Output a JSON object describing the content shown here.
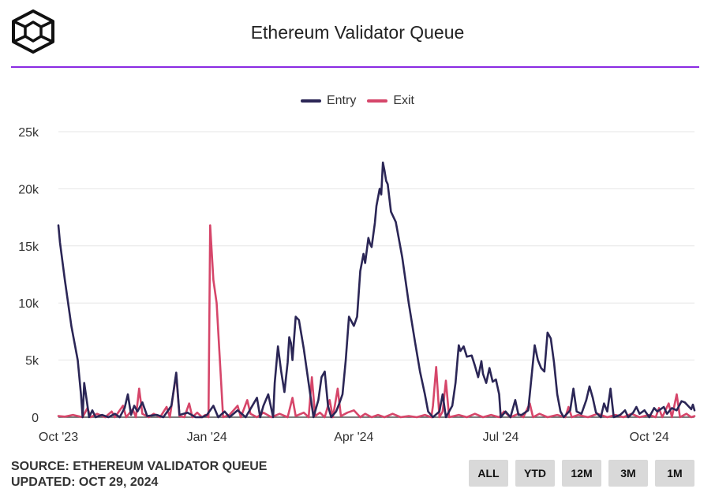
{
  "header": {
    "title": "Ethereum Validator Queue"
  },
  "footer": {
    "source": "SOURCE: ETHEREUM VALIDATOR QUEUE",
    "updated": "UPDATED: OCT 29, 2024"
  },
  "buttons": [
    "ALL",
    "YTD",
    "12M",
    "3M",
    "1M"
  ],
  "colors": {
    "entry": "#2b2656",
    "exit": "#d6466a",
    "accent": "#8a2be2",
    "grid": "#e6e6e6"
  },
  "chart_data": {
    "type": "line",
    "title": "Ethereum Validator Queue",
    "xlabel": "",
    "ylabel": "",
    "x_range": [
      "2023-10-01",
      "2024-10-29"
    ],
    "ylim": [
      0,
      25000
    ],
    "yticks": [
      0,
      5000,
      10000,
      15000,
      20000,
      25000
    ],
    "ytick_labels": [
      "0",
      "5k",
      "10k",
      "15k",
      "20k",
      "25k"
    ],
    "xticks": [
      "2023-10-01",
      "2024-01-01",
      "2024-04-01",
      "2024-07-01",
      "2024-10-01"
    ],
    "xtick_labels": [
      "Oct '23",
      "Jan '24",
      "Apr '24",
      "Jul '24",
      "Oct '24"
    ],
    "grid": true,
    "legend_position": "top-center",
    "series": [
      {
        "name": "Entry",
        "points": [
          [
            "2023-10-01",
            16800
          ],
          [
            "2023-10-02",
            15300
          ],
          [
            "2023-10-05",
            12000
          ],
          [
            "2023-10-09",
            8000
          ],
          [
            "2023-10-13",
            5000
          ],
          [
            "2023-10-15",
            2000
          ],
          [
            "2023-10-16",
            0
          ],
          [
            "2023-10-17",
            3000
          ],
          [
            "2023-10-18",
            2000
          ],
          [
            "2023-10-20",
            0
          ],
          [
            "2023-10-22",
            600
          ],
          [
            "2023-10-24",
            0
          ],
          [
            "2023-10-28",
            200
          ],
          [
            "2023-11-01",
            0
          ],
          [
            "2023-11-05",
            300
          ],
          [
            "2023-11-08",
            0
          ],
          [
            "2023-11-11",
            800
          ],
          [
            "2023-11-13",
            2000
          ],
          [
            "2023-11-15",
            200
          ],
          [
            "2023-11-17",
            1000
          ],
          [
            "2023-11-19",
            500
          ],
          [
            "2023-11-22",
            1300
          ],
          [
            "2023-11-25",
            100
          ],
          [
            "2023-12-01",
            200
          ],
          [
            "2023-12-05",
            0
          ],
          [
            "2023-12-10",
            1000
          ],
          [
            "2023-12-13",
            3900
          ],
          [
            "2023-12-15",
            200
          ],
          [
            "2023-12-20",
            400
          ],
          [
            "2023-12-25",
            0
          ],
          [
            "2023-12-29",
            0
          ],
          [
            "2024-01-01",
            200
          ],
          [
            "2024-01-05",
            1000
          ],
          [
            "2024-01-08",
            0
          ],
          [
            "2024-01-12",
            500
          ],
          [
            "2024-01-15",
            0
          ],
          [
            "2024-01-20",
            600
          ],
          [
            "2024-01-25",
            0
          ],
          [
            "2024-02-01",
            1700
          ],
          [
            "2024-02-03",
            0
          ],
          [
            "2024-02-05",
            1000
          ],
          [
            "2024-02-08",
            2000
          ],
          [
            "2024-02-11",
            0
          ],
          [
            "2024-02-12",
            3000
          ],
          [
            "2024-02-14",
            6200
          ],
          [
            "2024-02-16",
            4000
          ],
          [
            "2024-02-18",
            2200
          ],
          [
            "2024-02-20",
            4800
          ],
          [
            "2024-02-21",
            7000
          ],
          [
            "2024-02-22",
            6500
          ],
          [
            "2024-02-23",
            5000
          ],
          [
            "2024-02-25",
            8800
          ],
          [
            "2024-02-27",
            8500
          ],
          [
            "2024-03-01",
            6000
          ],
          [
            "2024-03-03",
            4000
          ],
          [
            "2024-03-05",
            2000
          ],
          [
            "2024-03-07",
            0
          ],
          [
            "2024-03-10",
            1500
          ],
          [
            "2024-03-12",
            3500
          ],
          [
            "2024-03-14",
            4000
          ],
          [
            "2024-03-16",
            1000
          ],
          [
            "2024-03-18",
            0
          ],
          [
            "2024-03-21",
            500
          ],
          [
            "2024-03-23",
            1200
          ],
          [
            "2024-03-25",
            2000
          ],
          [
            "2024-03-27",
            5000
          ],
          [
            "2024-03-29",
            8800
          ],
          [
            "2024-04-01",
            8000
          ],
          [
            "2024-04-03",
            8800
          ],
          [
            "2024-04-05",
            12800
          ],
          [
            "2024-04-07",
            14300
          ],
          [
            "2024-04-08",
            13500
          ],
          [
            "2024-04-10",
            15700
          ],
          [
            "2024-04-11",
            15200
          ],
          [
            "2024-04-12",
            14900
          ],
          [
            "2024-04-14",
            17000
          ],
          [
            "2024-04-15",
            18500
          ],
          [
            "2024-04-17",
            20000
          ],
          [
            "2024-04-18",
            19500
          ],
          [
            "2024-04-19",
            22300
          ],
          [
            "2024-04-20",
            21600
          ],
          [
            "2024-04-21",
            20700
          ],
          [
            "2024-04-22",
            20400
          ],
          [
            "2024-04-24",
            18000
          ],
          [
            "2024-04-27",
            17100
          ],
          [
            "2024-05-01",
            14000
          ],
          [
            "2024-05-05",
            10000
          ],
          [
            "2024-05-09",
            6500
          ],
          [
            "2024-05-12",
            4000
          ],
          [
            "2024-05-15",
            2000
          ],
          [
            "2024-05-17",
            500
          ],
          [
            "2024-05-20",
            0
          ],
          [
            "2024-05-24",
            500
          ],
          [
            "2024-05-26",
            2000
          ],
          [
            "2024-05-28",
            0
          ],
          [
            "2024-06-01",
            1000
          ],
          [
            "2024-06-03",
            3000
          ],
          [
            "2024-06-05",
            6300
          ],
          [
            "2024-06-06",
            5800
          ],
          [
            "2024-06-08",
            6200
          ],
          [
            "2024-06-10",
            5300
          ],
          [
            "2024-06-13",
            5400
          ],
          [
            "2024-06-15",
            4500
          ],
          [
            "2024-06-17",
            3500
          ],
          [
            "2024-06-19",
            4900
          ],
          [
            "2024-06-20",
            3800
          ],
          [
            "2024-06-22",
            3000
          ],
          [
            "2024-06-24",
            4300
          ],
          [
            "2024-06-26",
            3100
          ],
          [
            "2024-06-28",
            3300
          ],
          [
            "2024-06-30",
            2000
          ],
          [
            "2024-07-01",
            0
          ],
          [
            "2024-07-04",
            500
          ],
          [
            "2024-07-07",
            0
          ],
          [
            "2024-07-10",
            1500
          ],
          [
            "2024-07-12",
            200
          ],
          [
            "2024-07-14",
            200
          ],
          [
            "2024-07-18",
            600
          ],
          [
            "2024-07-22",
            6300
          ],
          [
            "2024-07-24",
            5000
          ],
          [
            "2024-07-26",
            4300
          ],
          [
            "2024-07-28",
            4000
          ],
          [
            "2024-07-30",
            7400
          ],
          [
            "2024-08-01",
            6900
          ],
          [
            "2024-08-03",
            4800
          ],
          [
            "2024-08-05",
            2000
          ],
          [
            "2024-08-07",
            500
          ],
          [
            "2024-08-09",
            0
          ],
          [
            "2024-08-13",
            600
          ],
          [
            "2024-08-15",
            2500
          ],
          [
            "2024-08-17",
            500
          ],
          [
            "2024-08-20",
            300
          ],
          [
            "2024-08-23",
            1500
          ],
          [
            "2024-08-25",
            2700
          ],
          [
            "2024-08-27",
            1700
          ],
          [
            "2024-08-29",
            400
          ],
          [
            "2024-09-01",
            0
          ],
          [
            "2024-09-03",
            1200
          ],
          [
            "2024-09-05",
            500
          ],
          [
            "2024-09-07",
            2500
          ],
          [
            "2024-09-09",
            0
          ],
          [
            "2024-09-13",
            200
          ],
          [
            "2024-09-16",
            600
          ],
          [
            "2024-09-18",
            0
          ],
          [
            "2024-09-21",
            400
          ],
          [
            "2024-09-23",
            900
          ],
          [
            "2024-09-25",
            300
          ],
          [
            "2024-09-28",
            600
          ],
          [
            "2024-10-01",
            0
          ],
          [
            "2024-10-04",
            800
          ],
          [
            "2024-10-06",
            500
          ],
          [
            "2024-10-08",
            700
          ],
          [
            "2024-10-10",
            900
          ],
          [
            "2024-10-12",
            300
          ],
          [
            "2024-10-15",
            800
          ],
          [
            "2024-10-18",
            600
          ],
          [
            "2024-10-21",
            1400
          ],
          [
            "2024-10-23",
            1300
          ],
          [
            "2024-10-25",
            1000
          ],
          [
            "2024-10-27",
            700
          ],
          [
            "2024-10-28",
            1100
          ],
          [
            "2024-10-29",
            600
          ]
        ]
      },
      {
        "name": "Exit",
        "points": [
          [
            "2023-10-01",
            100
          ],
          [
            "2023-10-05",
            50
          ],
          [
            "2023-10-10",
            200
          ],
          [
            "2023-10-16",
            0
          ],
          [
            "2023-10-19",
            800
          ],
          [
            "2023-10-21",
            0
          ],
          [
            "2023-10-25",
            300
          ],
          [
            "2023-10-30",
            0
          ],
          [
            "2023-11-03",
            500
          ],
          [
            "2023-11-05",
            0
          ],
          [
            "2023-11-10",
            1000
          ],
          [
            "2023-11-12",
            0
          ],
          [
            "2023-11-16",
            700
          ],
          [
            "2023-11-18",
            0
          ],
          [
            "2023-11-20",
            2500
          ],
          [
            "2023-11-22",
            300
          ],
          [
            "2023-11-26",
            0
          ],
          [
            "2023-11-29",
            300
          ],
          [
            "2023-12-03",
            0
          ],
          [
            "2023-12-07",
            900
          ],
          [
            "2023-12-09",
            0
          ],
          [
            "2023-12-13",
            3800
          ],
          [
            "2023-12-15",
            100
          ],
          [
            "2023-12-18",
            0
          ],
          [
            "2023-12-21",
            1200
          ],
          [
            "2023-12-23",
            0
          ],
          [
            "2023-12-26",
            400
          ],
          [
            "2023-12-29",
            0
          ],
          [
            "2023-12-31",
            200
          ],
          [
            "2024-01-02",
            0
          ],
          [
            "2024-01-03",
            16800
          ],
          [
            "2024-01-05",
            12000
          ],
          [
            "2024-01-07",
            10000
          ],
          [
            "2024-01-09",
            5000
          ],
          [
            "2024-01-11",
            0
          ],
          [
            "2024-01-15",
            200
          ],
          [
            "2024-01-20",
            1000
          ],
          [
            "2024-01-22",
            0
          ],
          [
            "2024-01-26",
            1500
          ],
          [
            "2024-01-28",
            300
          ],
          [
            "2024-02-01",
            0
          ],
          [
            "2024-02-05",
            400
          ],
          [
            "2024-02-10",
            0
          ],
          [
            "2024-02-15",
            300
          ],
          [
            "2024-02-20",
            0
          ],
          [
            "2024-02-23",
            1700
          ],
          [
            "2024-02-25",
            100
          ],
          [
            "2024-03-01",
            400
          ],
          [
            "2024-03-04",
            0
          ],
          [
            "2024-03-06",
            3500
          ],
          [
            "2024-03-08",
            100
          ],
          [
            "2024-03-11",
            400
          ],
          [
            "2024-03-14",
            0
          ],
          [
            "2024-03-17",
            1500
          ],
          [
            "2024-03-19",
            0
          ],
          [
            "2024-03-22",
            2500
          ],
          [
            "2024-03-24",
            100
          ],
          [
            "2024-03-28",
            400
          ],
          [
            "2024-04-01",
            600
          ],
          [
            "2024-04-05",
            0
          ],
          [
            "2024-04-08",
            300
          ],
          [
            "2024-04-12",
            0
          ],
          [
            "2024-04-16",
            200
          ],
          [
            "2024-04-20",
            0
          ],
          [
            "2024-04-25",
            300
          ],
          [
            "2024-04-30",
            0
          ],
          [
            "2024-05-05",
            100
          ],
          [
            "2024-05-10",
            0
          ],
          [
            "2024-05-15",
            200
          ],
          [
            "2024-05-19",
            0
          ],
          [
            "2024-05-20",
            1000
          ],
          [
            "2024-05-22",
            4400
          ],
          [
            "2024-05-24",
            0
          ],
          [
            "2024-05-26",
            500
          ],
          [
            "2024-05-28",
            3200
          ],
          [
            "2024-05-30",
            0
          ],
          [
            "2024-06-05",
            200
          ],
          [
            "2024-06-10",
            0
          ],
          [
            "2024-06-15",
            300
          ],
          [
            "2024-06-20",
            0
          ],
          [
            "2024-06-25",
            200
          ],
          [
            "2024-06-30",
            0
          ],
          [
            "2024-07-03",
            500
          ],
          [
            "2024-07-07",
            0
          ],
          [
            "2024-07-12",
            300
          ],
          [
            "2024-07-15",
            0
          ],
          [
            "2024-07-19",
            1200
          ],
          [
            "2024-07-21",
            0
          ],
          [
            "2024-07-25",
            300
          ],
          [
            "2024-07-30",
            0
          ],
          [
            "2024-08-05",
            200
          ],
          [
            "2024-08-10",
            0
          ],
          [
            "2024-08-12",
            900
          ],
          [
            "2024-08-14",
            0
          ],
          [
            "2024-08-18",
            200
          ],
          [
            "2024-08-24",
            0
          ],
          [
            "2024-08-30",
            300
          ],
          [
            "2024-09-05",
            0
          ],
          [
            "2024-09-10",
            200
          ],
          [
            "2024-09-15",
            0
          ],
          [
            "2024-09-20",
            300
          ],
          [
            "2024-09-25",
            0
          ],
          [
            "2024-10-01",
            200
          ],
          [
            "2024-10-05",
            0
          ],
          [
            "2024-10-07",
            800
          ],
          [
            "2024-10-09",
            0
          ],
          [
            "2024-10-13",
            1200
          ],
          [
            "2024-10-15",
            0
          ],
          [
            "2024-10-18",
            2000
          ],
          [
            "2024-10-20",
            0
          ],
          [
            "2024-10-24",
            300
          ],
          [
            "2024-10-27",
            0
          ],
          [
            "2024-10-29",
            100
          ]
        ]
      }
    ]
  }
}
